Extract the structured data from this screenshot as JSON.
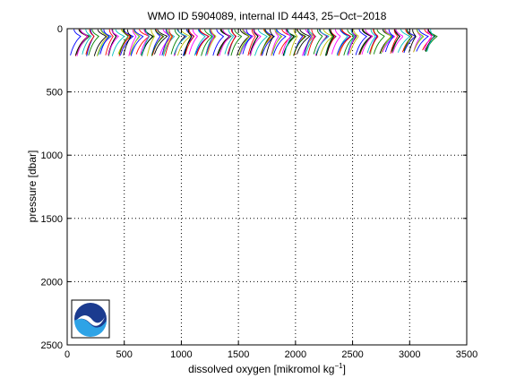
{
  "chart_data": {
    "type": "line",
    "title": "WMO ID 5904089, internal ID 4443, 25−Oct−2018",
    "xlabel_main": "dissolved oxygen [mikromol kg",
    "xlabel_exp": "−1",
    "xlabel_close": "]",
    "ylabel": "pressure [dbar]",
    "xlim": [
      0,
      3500
    ],
    "ylim": [
      0,
      2500
    ],
    "y_reversed": true,
    "grid": true,
    "grid_style": "dotted",
    "x_ticks": [
      0,
      500,
      1000,
      1500,
      2000,
      2500,
      3000,
      3500
    ],
    "y_ticks": [
      0,
      500,
      1000,
      1500,
      2000,
      2500
    ],
    "profiles": {
      "description_count": 160,
      "pressure_min": 5,
      "pressure_max": 210,
      "offset_start": 60,
      "offset_end": 3200,
      "shape": "oxygen rises from surface to peak near 60 dbar, then decreases with depth; each profile offset along x",
      "colors": [
        "#0000ff",
        "#ff0000",
        "#008000",
        "#000000",
        "#ff00ff",
        "#00bfbf",
        "#bfbf00"
      ]
    },
    "logo": {
      "name": "NOAA",
      "colors": {
        "sky": "#1b3b8f",
        "sea": "#2ea3e6",
        "bird": "#ffffff"
      }
    }
  }
}
